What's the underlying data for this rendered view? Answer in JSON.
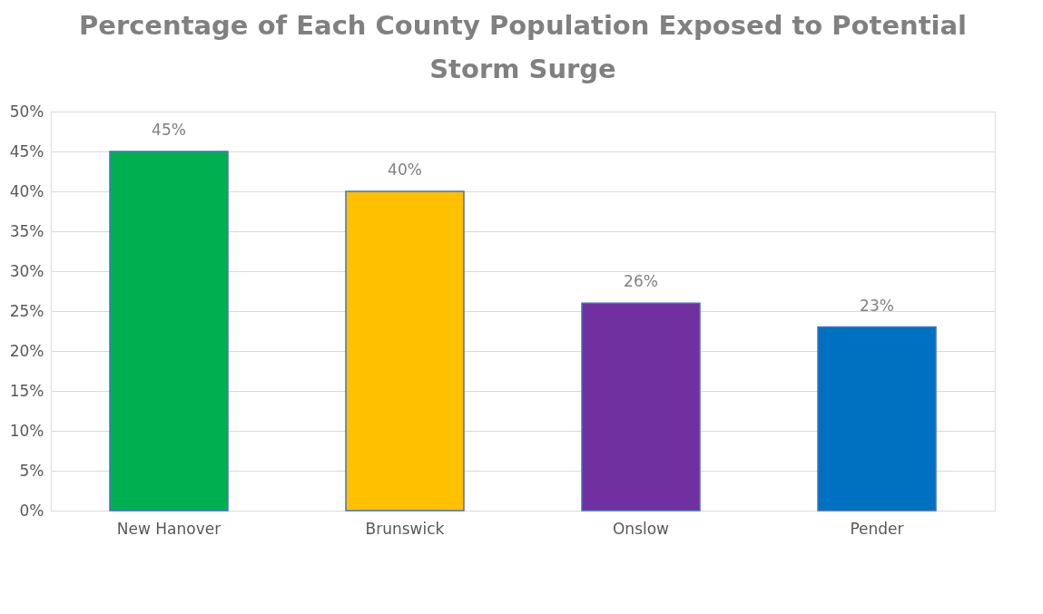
{
  "chart_data": {
    "type": "bar",
    "title": "Percentage of Each County Population Exposed to Potential Storm Surge",
    "categories": [
      "New Hanover",
      "Brunswick",
      "Onslow",
      "Pender"
    ],
    "values": [
      45,
      40,
      26,
      23
    ],
    "colors": [
      "#00b050",
      "#ffc000",
      "#7030a0",
      "#0070c0"
    ],
    "value_labels": [
      "45%",
      "40%",
      "26%",
      "23%"
    ],
    "ylim": [
      0,
      50
    ],
    "yticks": [
      {
        "value": 0,
        "label": "0%"
      },
      {
        "value": 5,
        "label": "5%"
      },
      {
        "value": 10,
        "label": "10%"
      },
      {
        "value": 15,
        "label": "15%"
      },
      {
        "value": 20,
        "label": "20%"
      },
      {
        "value": 25,
        "label": "25%"
      },
      {
        "value": 30,
        "label": "30%"
      },
      {
        "value": 35,
        "label": "35%"
      },
      {
        "value": 40,
        "label": "40%"
      },
      {
        "value": 45,
        "label": "45%"
      },
      {
        "value": 50,
        "label": "50%"
      }
    ],
    "grid": "y"
  }
}
